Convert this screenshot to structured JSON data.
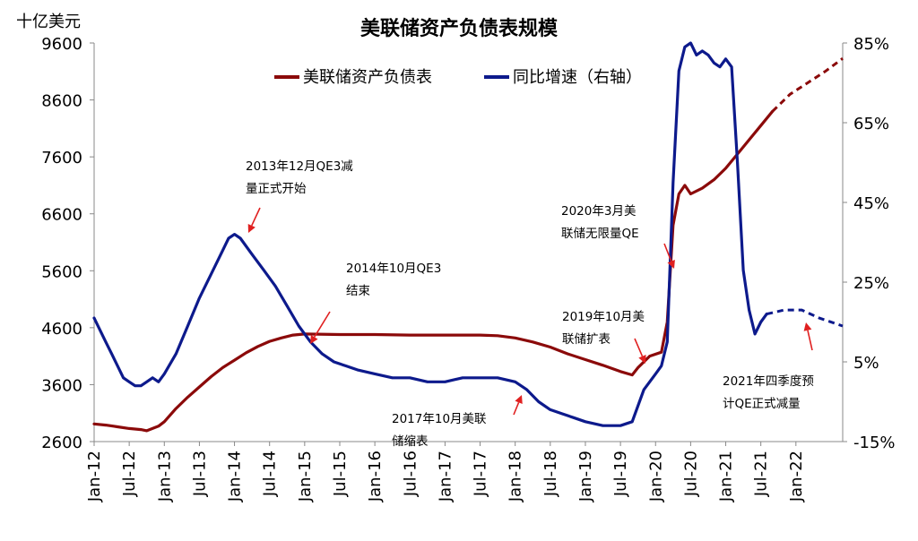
{
  "chart_data": {
    "type": "line",
    "title": "美联储资产负债表规模",
    "y_unit": "十亿美元",
    "ylim": [
      2600,
      9600
    ],
    "y_ticks": [
      "9600",
      "8600",
      "7600",
      "6600",
      "5600",
      "4600",
      "3600",
      "2600"
    ],
    "y2lim": [
      -15,
      85
    ],
    "y2_ticks": [
      "85%",
      "65%",
      "45%",
      "25%",
      "5%",
      "-15%"
    ],
    "x_range": [
      "2012-01",
      "2022-09"
    ],
    "x_ticks": [
      {
        "label": "Jan-12",
        "t": "2012-01"
      },
      {
        "label": "Jul-12",
        "t": "2012-07"
      },
      {
        "label": "Jan-13",
        "t": "2013-01"
      },
      {
        "label": "Jul-13",
        "t": "2013-07"
      },
      {
        "label": "Jan-14",
        "t": "2014-01"
      },
      {
        "label": "Jul-14",
        "t": "2014-07"
      },
      {
        "label": "Jan-15",
        "t": "2015-01"
      },
      {
        "label": "Jul-15",
        "t": "2015-07"
      },
      {
        "label": "Jan-16",
        "t": "2016-01"
      },
      {
        "label": "Jul-16",
        "t": "2016-07"
      },
      {
        "label": "Jan-17",
        "t": "2017-01"
      },
      {
        "label": "Jul-17",
        "t": "2017-07"
      },
      {
        "label": "Jan-18",
        "t": "2018-01"
      },
      {
        "label": "Jul-18",
        "t": "2018-07"
      },
      {
        "label": "Jan-19",
        "t": "2019-01"
      },
      {
        "label": "Jul-19",
        "t": "2019-07"
      },
      {
        "label": "Jan-20",
        "t": "2020-01"
      },
      {
        "label": "Jul-20",
        "t": "2020-07"
      },
      {
        "label": "Jan-21",
        "t": "2021-01"
      },
      {
        "label": "Jul-21",
        "t": "2021-07"
      },
      {
        "label": "Jan-22",
        "t": "2022-01"
      }
    ],
    "series": [
      {
        "name": "美联储资产负债表",
        "axis": "left",
        "color": "#8b0a0a",
        "points": [
          [
            "2012-01",
            2910
          ],
          [
            "2012-03",
            2890
          ],
          [
            "2012-05",
            2860
          ],
          [
            "2012-07",
            2830
          ],
          [
            "2012-09",
            2810
          ],
          [
            "2012-10",
            2790
          ],
          [
            "2012-12",
            2870
          ],
          [
            "2013-01",
            2950
          ],
          [
            "2013-03",
            3180
          ],
          [
            "2013-05",
            3380
          ],
          [
            "2013-07",
            3560
          ],
          [
            "2013-09",
            3740
          ],
          [
            "2013-11",
            3900
          ],
          [
            "2014-01",
            4030
          ],
          [
            "2014-03",
            4160
          ],
          [
            "2014-05",
            4270
          ],
          [
            "2014-07",
            4360
          ],
          [
            "2014-09",
            4420
          ],
          [
            "2014-11",
            4470
          ],
          [
            "2015-01",
            4490
          ],
          [
            "2015-07",
            4480
          ],
          [
            "2016-01",
            4480
          ],
          [
            "2016-07",
            4470
          ],
          [
            "2017-01",
            4470
          ],
          [
            "2017-07",
            4470
          ],
          [
            "2017-10",
            4460
          ],
          [
            "2018-01",
            4420
          ],
          [
            "2018-04",
            4350
          ],
          [
            "2018-07",
            4260
          ],
          [
            "2018-10",
            4140
          ],
          [
            "2019-01",
            4040
          ],
          [
            "2019-04",
            3940
          ],
          [
            "2019-07",
            3830
          ],
          [
            "2019-09",
            3770
          ],
          [
            "2019-10",
            3900
          ],
          [
            "2019-12",
            4100
          ],
          [
            "2020-02",
            4170
          ],
          [
            "2020-03",
            4700
          ],
          [
            "2020-04",
            6400
          ],
          [
            "2020-05",
            6950
          ],
          [
            "2020-06",
            7100
          ],
          [
            "2020-07",
            6950
          ],
          [
            "2020-09",
            7050
          ],
          [
            "2020-11",
            7200
          ],
          [
            "2021-01",
            7400
          ],
          [
            "2021-03",
            7650
          ],
          [
            "2021-05",
            7900
          ],
          [
            "2021-07",
            8150
          ],
          [
            "2021-09",
            8400
          ]
        ],
        "projection": [
          [
            "2021-09",
            8400
          ],
          [
            "2021-12",
            8700
          ],
          [
            "2022-03",
            8900
          ],
          [
            "2022-06",
            9100
          ],
          [
            "2022-09",
            9330
          ]
        ]
      },
      {
        "name": "同比增速（右轴）",
        "axis": "right",
        "color": "#0d1a8c",
        "points": [
          [
            "2012-01",
            16
          ],
          [
            "2012-02",
            13
          ],
          [
            "2012-03",
            10
          ],
          [
            "2012-04",
            7
          ],
          [
            "2012-05",
            4
          ],
          [
            "2012-06",
            1
          ],
          [
            "2012-07",
            0
          ],
          [
            "2012-08",
            -1
          ],
          [
            "2012-09",
            -1
          ],
          [
            "2012-10",
            0
          ],
          [
            "2012-11",
            1
          ],
          [
            "2012-12",
            0
          ],
          [
            "2013-01",
            2
          ],
          [
            "2013-03",
            7
          ],
          [
            "2013-05",
            14
          ],
          [
            "2013-07",
            21
          ],
          [
            "2013-09",
            27
          ],
          [
            "2013-11",
            33
          ],
          [
            "2013-12",
            36
          ],
          [
            "2014-01",
            37
          ],
          [
            "2014-02",
            36
          ],
          [
            "2014-04",
            32
          ],
          [
            "2014-06",
            28
          ],
          [
            "2014-08",
            24
          ],
          [
            "2014-10",
            19
          ],
          [
            "2014-12",
            14
          ],
          [
            "2015-02",
            10
          ],
          [
            "2015-04",
            7
          ],
          [
            "2015-06",
            5
          ],
          [
            "2015-08",
            4
          ],
          [
            "2015-10",
            3
          ],
          [
            "2016-01",
            2
          ],
          [
            "2016-04",
            1
          ],
          [
            "2016-07",
            1
          ],
          [
            "2016-10",
            0
          ],
          [
            "2017-01",
            0
          ],
          [
            "2017-04",
            1
          ],
          [
            "2017-07",
            1
          ],
          [
            "2017-10",
            1
          ],
          [
            "2018-01",
            0
          ],
          [
            "2018-03",
            -2
          ],
          [
            "2018-05",
            -5
          ],
          [
            "2018-07",
            -7
          ],
          [
            "2018-09",
            -8
          ],
          [
            "2018-11",
            -9
          ],
          [
            "2019-01",
            -10
          ],
          [
            "2019-04",
            -11
          ],
          [
            "2019-07",
            -11
          ],
          [
            "2019-09",
            -10
          ],
          [
            "2019-11",
            -2
          ],
          [
            "2020-01",
            2
          ],
          [
            "2020-02",
            4
          ],
          [
            "2020-03",
            10
          ],
          [
            "2020-04",
            50
          ],
          [
            "2020-05",
            78
          ],
          [
            "2020-06",
            84
          ],
          [
            "2020-07",
            85
          ],
          [
            "2020-08",
            82
          ],
          [
            "2020-09",
            83
          ],
          [
            "2020-10",
            82
          ],
          [
            "2020-11",
            80
          ],
          [
            "2020-12",
            79
          ],
          [
            "2021-01",
            81
          ],
          [
            "2021-02",
            79
          ],
          [
            "2021-03",
            55
          ],
          [
            "2021-04",
            28
          ],
          [
            "2021-05",
            18
          ],
          [
            "2021-06",
            12
          ],
          [
            "2021-07",
            15
          ],
          [
            "2021-08",
            17
          ]
        ],
        "projection": [
          [
            "2021-08",
            17
          ],
          [
            "2021-11",
            18
          ],
          [
            "2022-02",
            18
          ],
          [
            "2022-05",
            16
          ],
          [
            "2022-09",
            14
          ]
        ]
      }
    ],
    "annotations": [
      {
        "lines": [
          "2013年12月QE3减",
          "量正式开始"
        ],
        "target": [
          "2014-01",
          37,
          "right"
        ]
      },
      {
        "lines": [
          "2014年10月QE3",
          "结束"
        ],
        "target": [
          "2014-11",
          4480,
          "left"
        ]
      },
      {
        "lines": [
          "2017年10月美联",
          "储缩表"
        ],
        "target": [
          "2017-10",
          1,
          "right"
        ]
      },
      {
        "lines": [
          "2019年10月美",
          "联储扩表"
        ],
        "target": [
          "2019-10",
          3800,
          "left"
        ]
      },
      {
        "lines": [
          "2020年3月美",
          "联储无限量QE"
        ],
        "target": [
          "2020-03",
          9,
          "right"
        ]
      },
      {
        "lines": [
          "2021年四季度预",
          "计QE正式减量"
        ],
        "target": [
          "2021-11",
          18,
          "right"
        ]
      }
    ],
    "legend_position": "top",
    "grid": false
  }
}
